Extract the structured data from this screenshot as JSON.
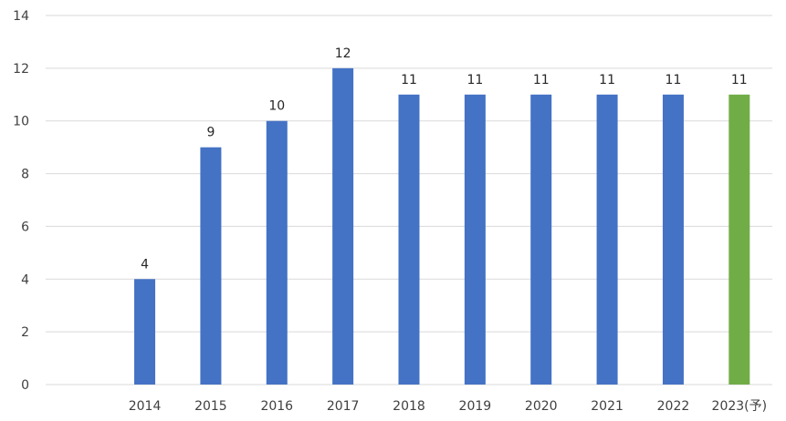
{
  "chart_data": {
    "type": "bar",
    "title": "",
    "xlabel": "",
    "ylabel": "",
    "categories": [
      "",
      "2014",
      "2015",
      "2016",
      "2017",
      "2018",
      "2019",
      "2020",
      "2021",
      "2022",
      "2023(予)"
    ],
    "values": [
      null,
      4,
      9,
      10,
      12,
      11,
      11,
      11,
      11,
      11,
      11
    ],
    "data_labels": [
      "",
      "4",
      "9",
      "10",
      "12",
      "11",
      "11",
      "11",
      "11",
      "11",
      "11"
    ],
    "bar_colors": [
      "#4472c4",
      "#4472c4",
      "#4472c4",
      "#4472c4",
      "#4472c4",
      "#4472c4",
      "#4472c4",
      "#4472c4",
      "#4472c4",
      "#4472c4",
      "#70ad47"
    ],
    "ylim": [
      0,
      14
    ],
    "yticks": [
      0,
      2,
      4,
      6,
      8,
      10,
      12,
      14
    ],
    "ytick_labels": [
      "0",
      "2",
      "4",
      "6",
      "8",
      "10",
      "12",
      "14"
    ],
    "grid": true,
    "legend": "none"
  }
}
